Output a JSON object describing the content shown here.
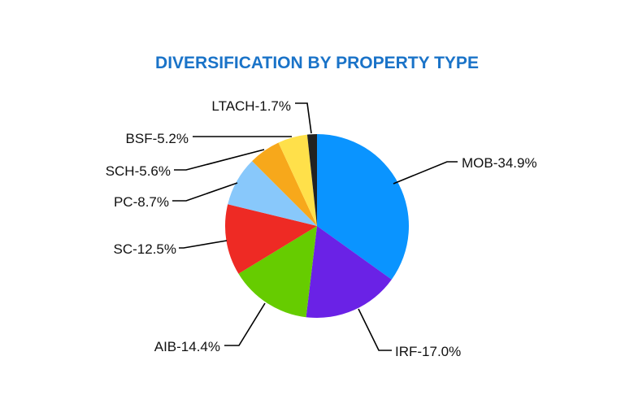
{
  "chart_data": {
    "type": "pie",
    "title": "DIVERSIFICATION BY PROPERTY TYPE",
    "start": "top",
    "direction": "clockwise",
    "slices": [
      {
        "label": "MOB-34.9%",
        "name": "MOB",
        "value": 34.9,
        "color": "#0a94ff"
      },
      {
        "label": "IRF-17.0%",
        "name": "IRF",
        "value": 17.0,
        "color": "#6a22e6"
      },
      {
        "label": "AIB-14.4%",
        "name": "AIB",
        "value": 14.4,
        "color": "#66cc00"
      },
      {
        "label": "SC-12.5%",
        "name": "SC",
        "value": 12.5,
        "color": "#ee2a24"
      },
      {
        "label": "PC-8.7%",
        "name": "PC",
        "value": 8.7,
        "color": "#88c8fb"
      },
      {
        "label": "SCH-5.6%",
        "name": "SCH",
        "value": 5.6,
        "color": "#f7a81b"
      },
      {
        "label": "BSF-5.2%",
        "name": "BSF",
        "value": 5.2,
        "color": "#ffe04a"
      },
      {
        "label": "LTACH-1.7%",
        "name": "LTACH",
        "value": 1.7,
        "color": "#222222"
      }
    ]
  }
}
